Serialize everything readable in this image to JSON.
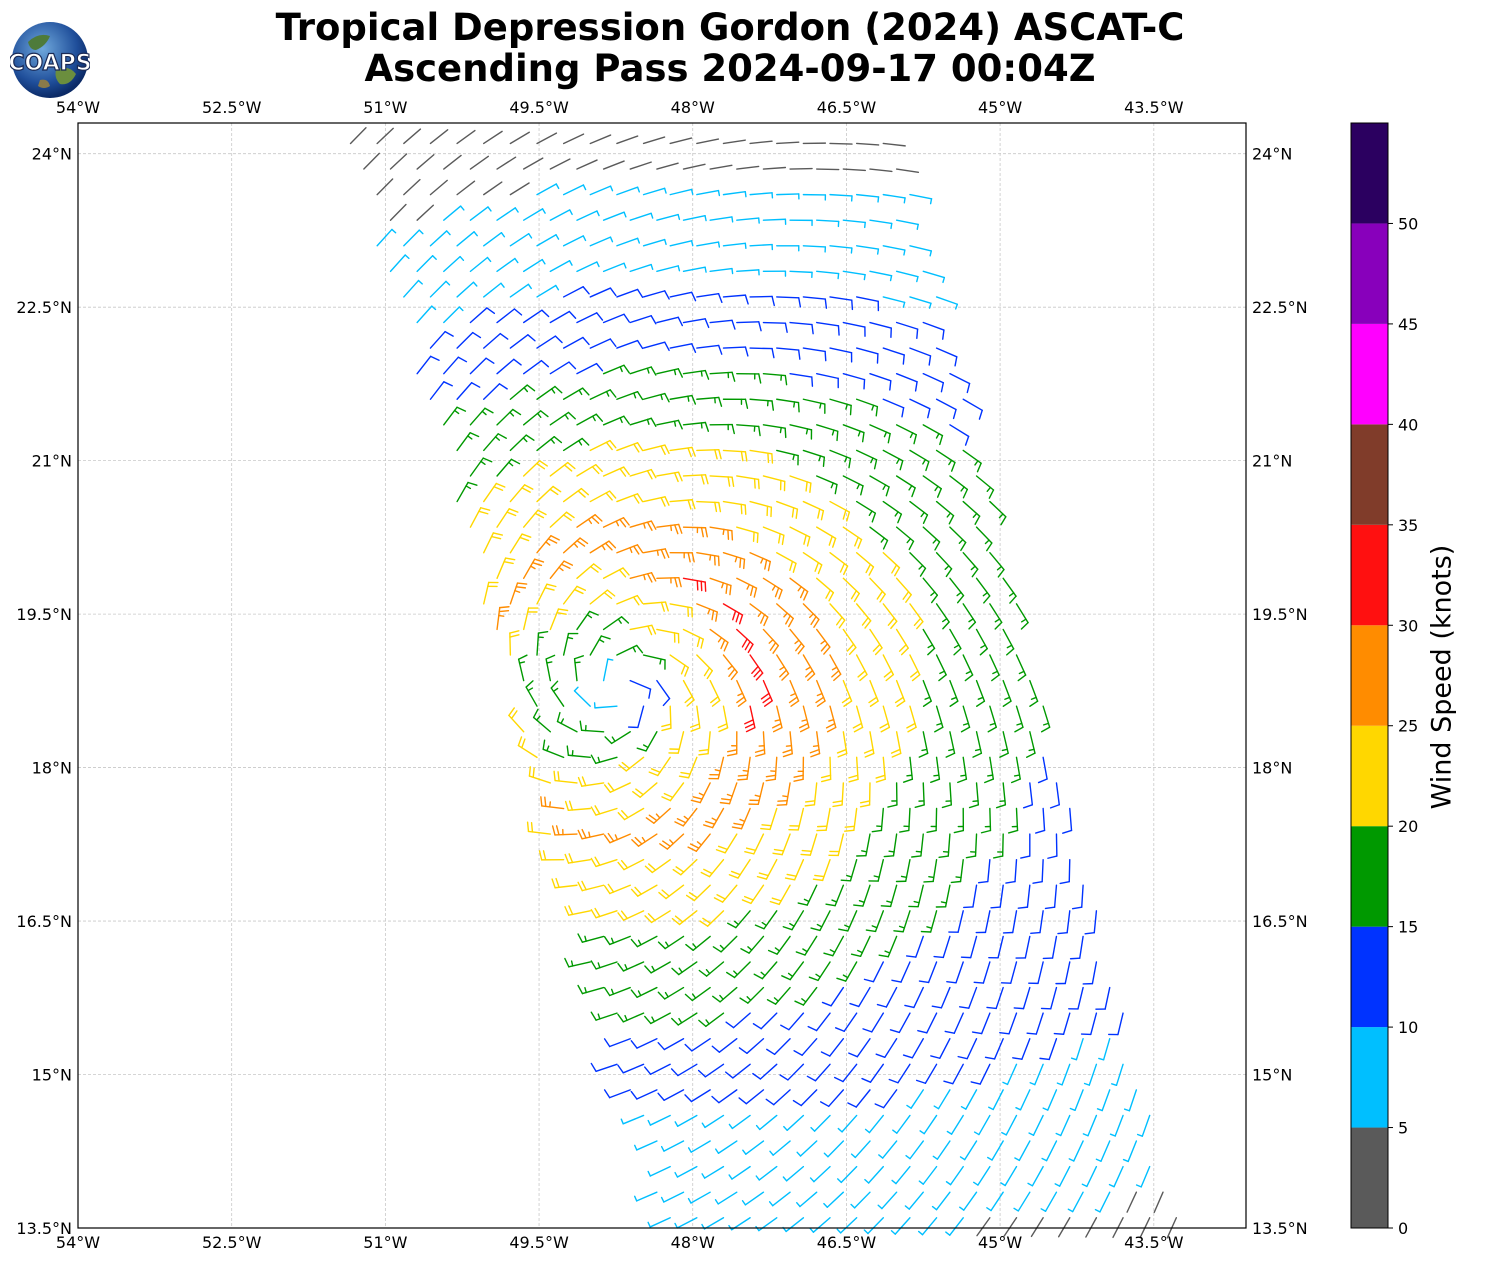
{
  "header": {
    "title_line1": "Tropical Depression Gordon (2024) ASCAT-C",
    "title_line2": "Ascending Pass 2024-09-17 00:04Z",
    "logo_text": "COAPS"
  },
  "map": {
    "lon_ticks": [
      "54°W",
      "52.5°W",
      "51°W",
      "49.5°W",
      "48°W",
      "46.5°W",
      "45°W",
      "43.5°W"
    ],
    "lat_ticks": [
      "24°N",
      "22.5°N",
      "21°N",
      "19.5°N",
      "18°N",
      "16.5°N",
      "15°N",
      "13.5°N"
    ],
    "lon_range": [
      -54,
      -42.6
    ],
    "lat_range": [
      13.5,
      24.3
    ],
    "gridlines": true,
    "storm_center": {
      "lon": -48.7,
      "lat": 18.75
    }
  },
  "colorbar": {
    "label": "Wind Speed (knots)",
    "ticks": [
      "0",
      "5",
      "10",
      "15",
      "20",
      "25",
      "30",
      "35",
      "40",
      "45",
      "50"
    ],
    "bins": [
      {
        "min": 0,
        "max": 5,
        "color": "#5a5a5a"
      },
      {
        "min": 5,
        "max": 10,
        "color": "#00bfff"
      },
      {
        "min": 10,
        "max": 15,
        "color": "#0033ff"
      },
      {
        "min": 15,
        "max": 20,
        "color": "#009900"
      },
      {
        "min": 20,
        "max": 25,
        "color": "#ffd700"
      },
      {
        "min": 25,
        "max": 30,
        "color": "#ff8c00"
      },
      {
        "min": 30,
        "max": 35,
        "color": "#ff1010"
      },
      {
        "min": 35,
        "max": 40,
        "color": "#803c2a"
      },
      {
        "min": 40,
        "max": 45,
        "color": "#ff00ff"
      },
      {
        "min": 45,
        "max": 50,
        "color": "#8800bb"
      },
      {
        "min": 50,
        "max": 55,
        "color": "#2b0060"
      }
    ]
  }
}
